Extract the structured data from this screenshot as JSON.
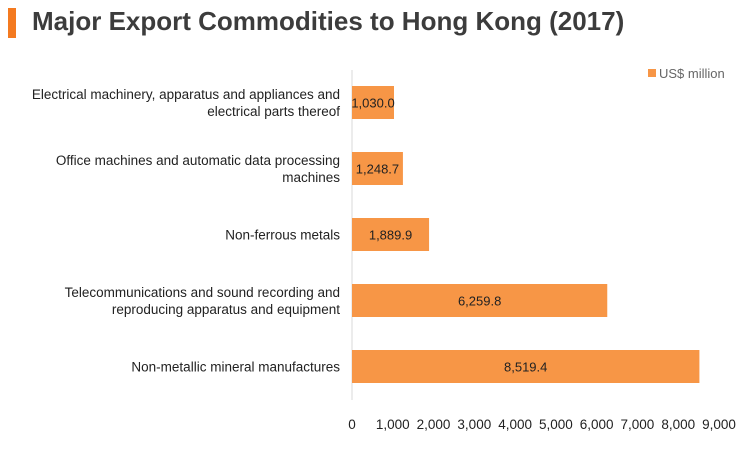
{
  "page": {
    "title": "Major Export Commodities to Hong Kong (2017)",
    "accent_color": "#f47a20"
  },
  "chart_data": {
    "type": "bar",
    "orientation": "horizontal",
    "categories": [
      [
        "Electrical machinery, apparatus and appliances and",
        "electrical parts thereof"
      ],
      [
        "Office machines and automatic data processing",
        "machines"
      ],
      [
        "Non-ferrous metals"
      ],
      [
        "Telecommunications and sound recording and",
        "reproducing apparatus and equipment"
      ],
      [
        "Non-metallic mineral manufactures"
      ]
    ],
    "series": [
      {
        "name": "US$ million",
        "color": "#f79646",
        "values": [
          1030.0,
          1248.7,
          1889.9,
          6259.8,
          8519.4
        ],
        "labels": [
          "1,030.0",
          "1,248.7",
          "1,889.9",
          "6,259.8",
          "8,519.4"
        ]
      }
    ],
    "xlim": [
      0,
      9000
    ],
    "x_ticks": [
      0,
      1000,
      2000,
      3000,
      4000,
      5000,
      6000,
      7000,
      8000,
      9000
    ],
    "x_tick_labels": [
      "0",
      "1,000",
      "2,000",
      "3,000",
      "4,000",
      "5,000",
      "6,000",
      "7,000",
      "8,000",
      "9,000"
    ],
    "grid": false,
    "legend_position": "top-right"
  }
}
